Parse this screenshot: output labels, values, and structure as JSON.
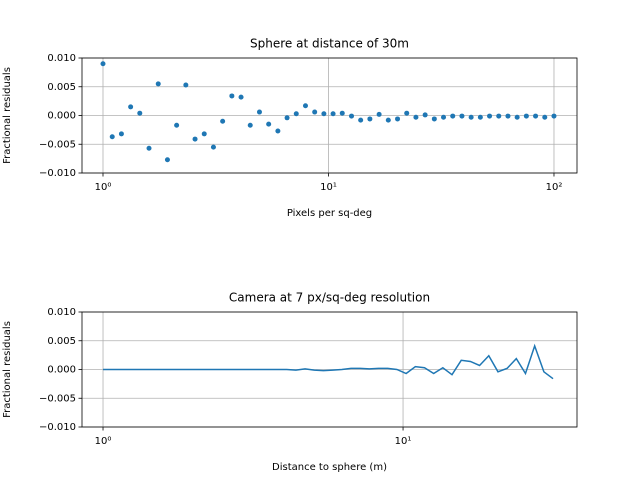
{
  "chart_data": [
    {
      "type": "scatter",
      "title": "Sphere at distance of 30m",
      "x_label": "Pixels per sq-deg",
      "y_label": "Fractional residuals",
      "x_scale": "log",
      "grid": true,
      "color": "#1f77b4",
      "xlim": [
        0.807,
        126.5
      ],
      "ylim": [
        -0.01,
        0.01
      ],
      "xticks": [
        {
          "value": 1,
          "label": "10⁰"
        },
        {
          "value": 10,
          "label": "10¹"
        },
        {
          "value": 100,
          "label": "10²"
        }
      ],
      "yticks": [
        {
          "value": -0.01,
          "label": "−0.010"
        },
        {
          "value": -0.005,
          "label": "−0.005"
        },
        {
          "value": 0,
          "label": "0.000"
        },
        {
          "value": 0.005,
          "label": "0.005"
        },
        {
          "value": 0.01,
          "label": "0.010"
        }
      ],
      "x": [
        1,
        1.099,
        1.207,
        1.326,
        1.456,
        1.6,
        1.758,
        1.931,
        2.121,
        2.33,
        2.56,
        2.812,
        3.089,
        3.393,
        3.728,
        4.095,
        4.498,
        4.942,
        5.429,
        5.964,
        6.551,
        7.197,
        7.906,
        8.685,
        9.541,
        10.48,
        11.51,
        12.65,
        13.89,
        15.26,
        16.77,
        18.42,
        20.24,
        22.23,
        24.42,
        26.83,
        29.47,
        32.37,
        35.56,
        39.07,
        42.92,
        47.15,
        51.79,
        56.9,
        62.51,
        68.66,
        75.43,
        82.86,
        91.03,
        100
      ],
      "values": [
        0.009,
        -0.0037,
        -0.0032,
        0.0015,
        0.0004,
        -0.0057,
        0.0055,
        -0.0077,
        -0.0017,
        0.0053,
        -0.0041,
        -0.0032,
        -0.0055,
        -0.001,
        0.0034,
        0.0032,
        -0.0017,
        0.0006,
        -0.0015,
        -0.0027,
        -0.0004,
        0.0003,
        0.0017,
        0.0006,
        0.0003,
        0.0003,
        0.0004,
        -0.0001,
        -0.0008,
        -0.0006,
        0.0002,
        -0.0008,
        -0.0006,
        0.0004,
        -0.0003,
        0.0001,
        -0.0006,
        -0.0003,
        -0.0001,
        -0.0001,
        -0.0003,
        -0.0003,
        -0.0001,
        -0.0001,
        -0.0001,
        -0.0003,
        -0.0001,
        -0.0001,
        -0.0003,
        -0.0001
      ]
    },
    {
      "type": "line",
      "title": "Camera at 7 px/sq-deg resolution",
      "x_label": "Distance to sphere (m)",
      "y_label": "Fractional residuals",
      "x_scale": "log",
      "grid": true,
      "color": "#1f77b4",
      "xlim": [
        0.851,
        38.0
      ],
      "ylim": [
        -0.01,
        0.01
      ],
      "xticks": [
        {
          "value": 1,
          "label": "10⁰"
        },
        {
          "value": 10,
          "label": "10¹"
        }
      ],
      "yticks": [
        {
          "value": -0.01,
          "label": "−0.010"
        },
        {
          "value": -0.005,
          "label": "−0.005"
        },
        {
          "value": 0,
          "label": "0.000"
        },
        {
          "value": 0.005,
          "label": "0.005"
        },
        {
          "value": 0.01,
          "label": "0.010"
        }
      ],
      "x": [
        1,
        1.073,
        1.151,
        1.235,
        1.326,
        1.423,
        1.526,
        1.638,
        1.758,
        1.886,
        2.024,
        2.172,
        2.33,
        2.501,
        2.683,
        2.879,
        3.089,
        3.315,
        3.557,
        3.817,
        4.095,
        4.394,
        4.715,
        5.06,
        5.429,
        5.826,
        6.251,
        6.708,
        7.197,
        7.723,
        8.287,
        8.892,
        9.541,
        10.24,
        10.99,
        11.79,
        12.65,
        13.57,
        14.56,
        15.63,
        16.77,
        17.99,
        19.31,
        20.72,
        22.23,
        23.85,
        25.59,
        27.46,
        29.47,
        31.62
      ],
      "values": [
        0,
        0,
        0,
        0,
        0,
        0,
        0,
        0,
        0,
        0,
        0,
        0,
        0,
        0,
        0,
        0,
        0,
        0,
        0,
        0,
        0,
        -0.0001,
        0.0001,
        -0.0001,
        -0.0002,
        -0.0001,
        0,
        0.0002,
        0.0002,
        0.0001,
        0.0002,
        0.0002,
        0,
        -0.0007,
        0.0005,
        0.0003,
        -0.0007,
        0.0003,
        -0.0009,
        0.0016,
        0.0014,
        0.0007,
        0.0024,
        -0.0004,
        0.0002,
        0.0019,
        -0.0007,
        0.0041,
        -0.0004,
        -0.0016
      ]
    }
  ]
}
